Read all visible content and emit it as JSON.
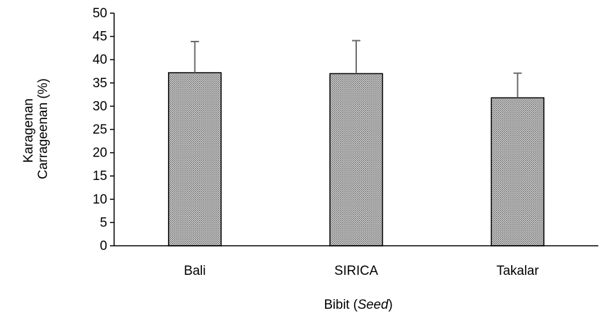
{
  "chart_data": {
    "type": "bar",
    "categories": [
      "Bali",
      "SIRICA",
      "Takalar"
    ],
    "values": [
      37.2,
      37.0,
      31.8
    ],
    "error": [
      6.7,
      7.1,
      5.3
    ],
    "ylim": [
      0,
      50
    ],
    "yticks": [
      0,
      5,
      10,
      15,
      20,
      25,
      30,
      35,
      40,
      45,
      50
    ],
    "ylabel_lines": [
      "Karagenan",
      "Carrageenan (%)"
    ],
    "xlabel": {
      "main": "Bibit (",
      "italic": "Seed",
      "end": ")"
    },
    "grid": false,
    "legend": "none",
    "bar_pattern": "dotted-gray"
  }
}
